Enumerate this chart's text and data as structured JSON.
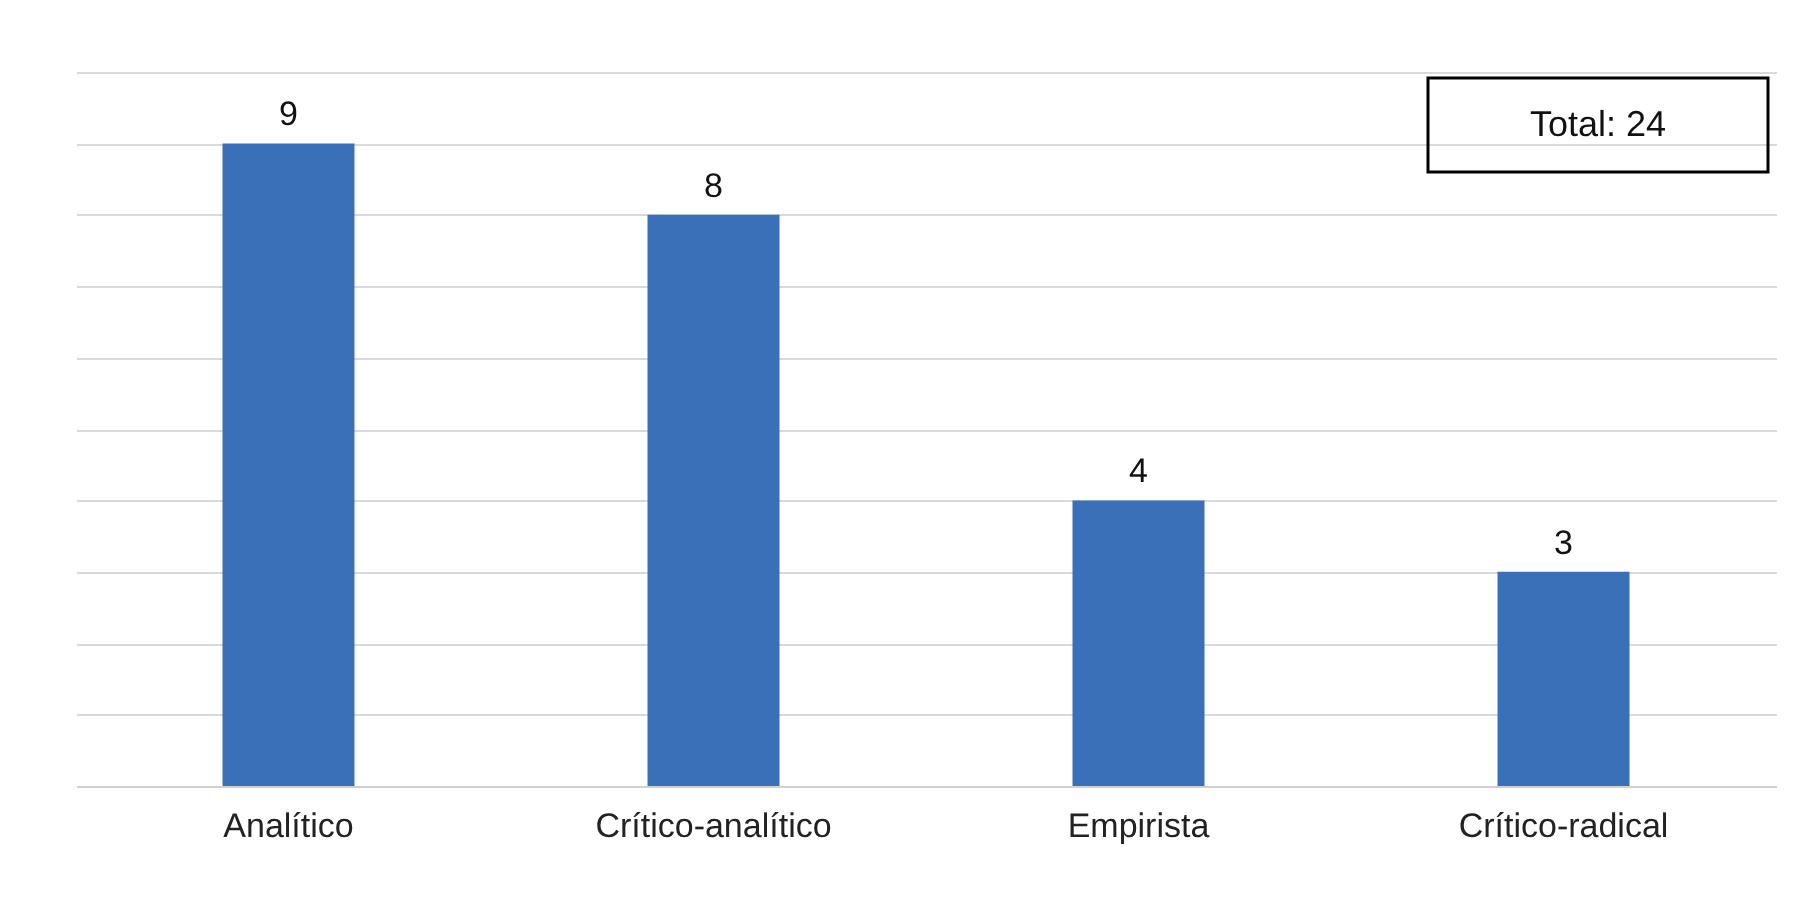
{
  "chart_data": {
    "type": "bar",
    "categories": [
      "Analítico",
      "Crítico-analítico",
      "Empirista",
      "Crítico-radical"
    ],
    "values": [
      9,
      8,
      4,
      3
    ],
    "color": "#3a70b8",
    "ylim": [
      0,
      10
    ],
    "yticks": [
      {
        "value": 0,
        "label": null
      },
      {
        "value": 1,
        "label": null
      },
      {
        "value": 2,
        "label": null
      },
      {
        "value": 3,
        "label": null
      },
      {
        "value": 4,
        "label": null
      },
      {
        "value": 5,
        "label": null
      },
      {
        "value": 6,
        "label": null
      },
      {
        "value": 7,
        "label": null
      },
      {
        "value": 8,
        "label": null
      },
      {
        "value": 9,
        "label": null
      },
      {
        "value": 10,
        "label": null
      }
    ],
    "grid": "y",
    "tick_labels": "x",
    "data_labels": true,
    "annotations": [
      "Total: 24"
    ]
  }
}
